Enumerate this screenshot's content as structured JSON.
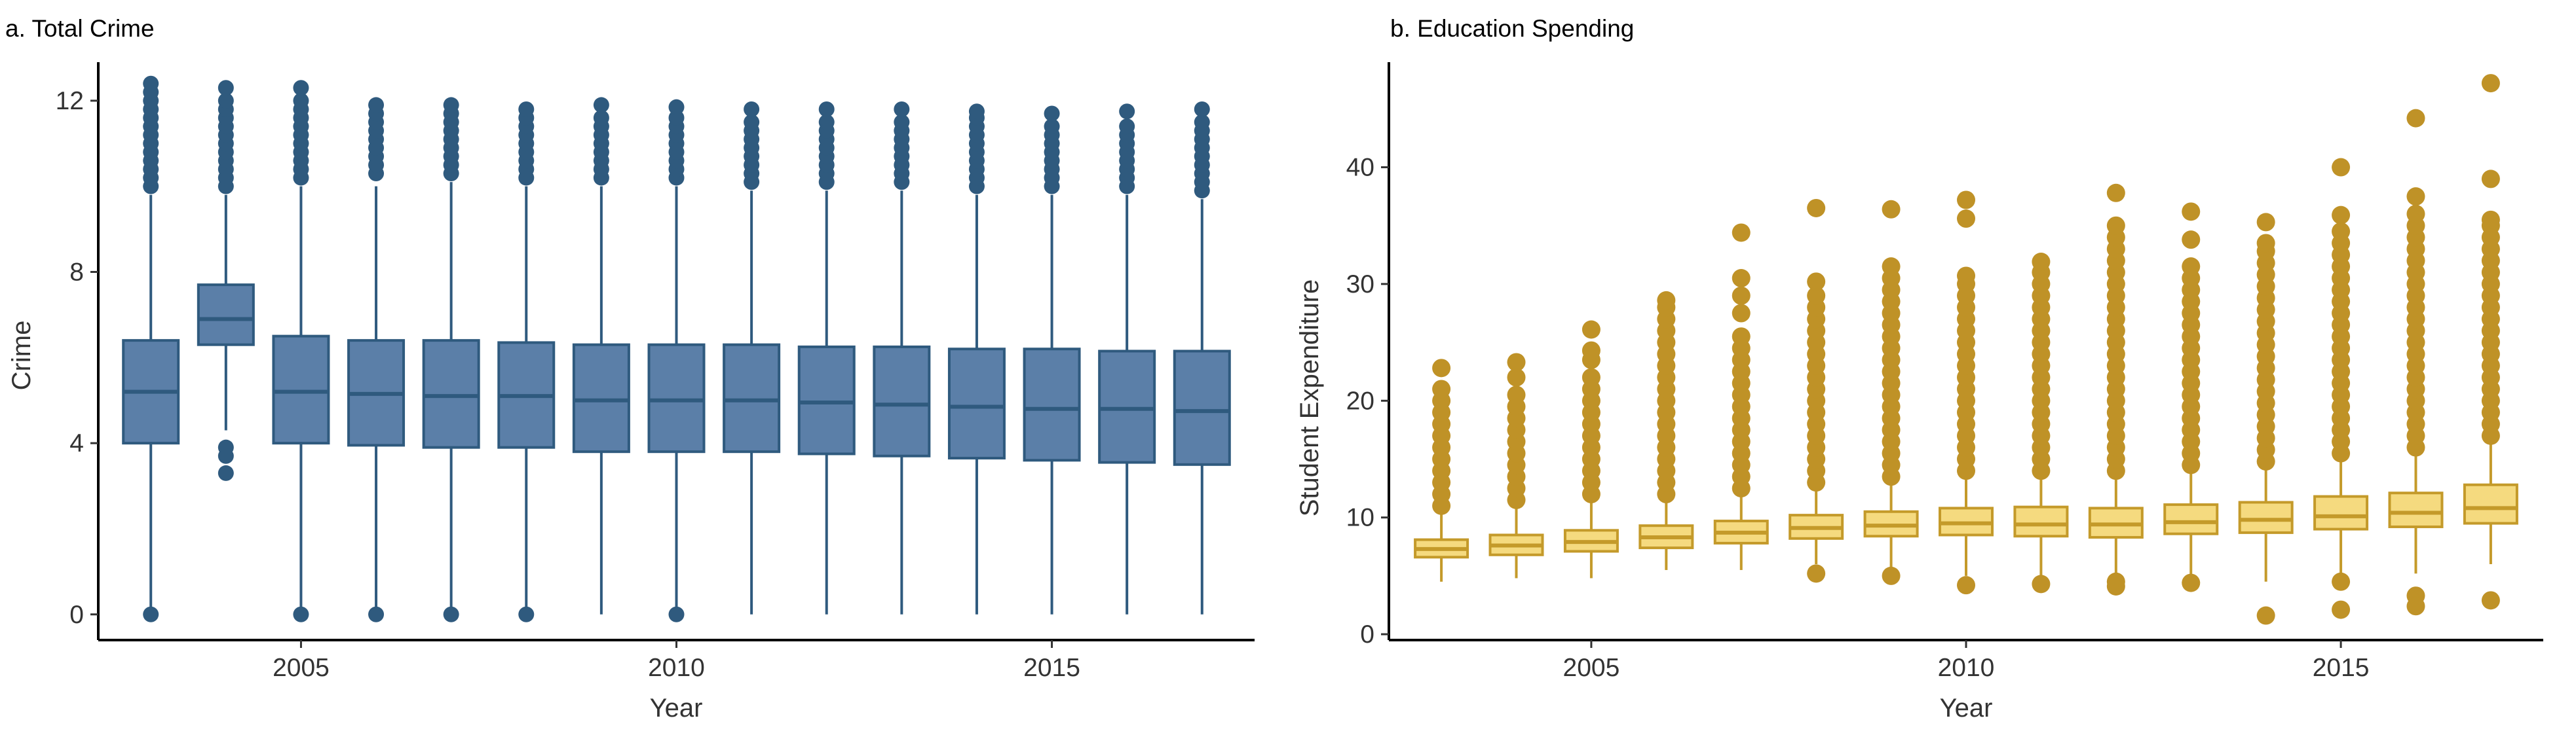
{
  "chart_data": [
    {
      "type": "box",
      "title": "a. Total Crime",
      "xlabel": "Year",
      "ylabel": "Crime",
      "xlim": [
        2002.3,
        2017.7
      ],
      "ylim": [
        -0.6,
        12.9
      ],
      "xticks": [
        2005,
        2010,
        2015
      ],
      "yticks": [
        0,
        4,
        8,
        12
      ],
      "colors": {
        "fill": "#5B7FA8",
        "stroke": "#2F5A7E",
        "outlier": "#2F5A7E"
      },
      "boxes": [
        {
          "year": 2003,
          "q1": 4.0,
          "median": 5.2,
          "q3": 6.4,
          "whisker_low": 0.0,
          "whisker_high": 9.8,
          "outliers": [
            10.0,
            10.2,
            10.4,
            10.6,
            10.8,
            11.0,
            11.2,
            11.4,
            11.6,
            11.8,
            12.0,
            12.2,
            12.4,
            0.0
          ]
        },
        {
          "year": 2004,
          "q1": 6.3,
          "median": 6.9,
          "q3": 7.7,
          "whisker_low": 4.3,
          "whisker_high": 9.8,
          "outliers": [
            10.0,
            10.2,
            10.4,
            10.6,
            10.8,
            11.0,
            11.2,
            11.4,
            11.6,
            11.8,
            12.0,
            12.3,
            3.9,
            3.7,
            3.3
          ]
        },
        {
          "year": 2005,
          "q1": 4.0,
          "median": 5.2,
          "q3": 6.5,
          "whisker_low": 0.0,
          "whisker_high": 10.0,
          "outliers": [
            10.2,
            10.4,
            10.6,
            10.8,
            11.0,
            11.2,
            11.4,
            11.6,
            11.8,
            12.0,
            12.3,
            0.0
          ]
        },
        {
          "year": 2006,
          "q1": 3.95,
          "median": 5.15,
          "q3": 6.4,
          "whisker_low": 0.0,
          "whisker_high": 10.0,
          "outliers": [
            10.3,
            10.5,
            10.7,
            10.9,
            11.1,
            11.3,
            11.5,
            11.7,
            11.9,
            0.0
          ]
        },
        {
          "year": 2007,
          "q1": 3.9,
          "median": 5.1,
          "q3": 6.4,
          "whisker_low": 0.0,
          "whisker_high": 10.1,
          "outliers": [
            10.3,
            10.5,
            10.7,
            10.9,
            11.1,
            11.3,
            11.5,
            11.7,
            11.9,
            0.0
          ]
        },
        {
          "year": 2008,
          "q1": 3.9,
          "median": 5.1,
          "q3": 6.35,
          "whisker_low": 0.0,
          "whisker_high": 10.0,
          "outliers": [
            10.2,
            10.4,
            10.6,
            10.8,
            11.0,
            11.2,
            11.4,
            11.6,
            11.8,
            0.0
          ]
        },
        {
          "year": 2009,
          "q1": 3.8,
          "median": 5.0,
          "q3": 6.3,
          "whisker_low": 0.0,
          "whisker_high": 10.0,
          "outliers": [
            10.2,
            10.4,
            10.6,
            10.8,
            11.0,
            11.2,
            11.4,
            11.6,
            11.9
          ]
        },
        {
          "year": 2010,
          "q1": 3.8,
          "median": 5.0,
          "q3": 6.3,
          "whisker_low": 0.0,
          "whisker_high": 10.0,
          "outliers": [
            10.2,
            10.4,
            10.6,
            10.8,
            11.0,
            11.2,
            11.4,
            11.6,
            11.85,
            0.0
          ]
        },
        {
          "year": 2011,
          "q1": 3.8,
          "median": 5.0,
          "q3": 6.3,
          "whisker_low": 0.0,
          "whisker_high": 9.9,
          "outliers": [
            10.1,
            10.3,
            10.5,
            10.7,
            10.9,
            11.1,
            11.3,
            11.5,
            11.8
          ]
        },
        {
          "year": 2012,
          "q1": 3.75,
          "median": 4.95,
          "q3": 6.25,
          "whisker_low": 0.0,
          "whisker_high": 9.9,
          "outliers": [
            10.1,
            10.3,
            10.5,
            10.7,
            10.9,
            11.1,
            11.3,
            11.5,
            11.8
          ]
        },
        {
          "year": 2013,
          "q1": 3.7,
          "median": 4.9,
          "q3": 6.25,
          "whisker_low": 0.0,
          "whisker_high": 9.9,
          "outliers": [
            10.1,
            10.3,
            10.5,
            10.7,
            10.9,
            11.1,
            11.3,
            11.5,
            11.8
          ]
        },
        {
          "year": 2014,
          "q1": 3.65,
          "median": 4.85,
          "q3": 6.2,
          "whisker_low": 0.0,
          "whisker_high": 9.8,
          "outliers": [
            10.0,
            10.2,
            10.4,
            10.6,
            10.8,
            11.0,
            11.2,
            11.4,
            11.6,
            11.75
          ]
        },
        {
          "year": 2015,
          "q1": 3.6,
          "median": 4.8,
          "q3": 6.2,
          "whisker_low": 0.0,
          "whisker_high": 9.8,
          "outliers": [
            10.0,
            10.2,
            10.4,
            10.6,
            10.8,
            11.0,
            11.2,
            11.4,
            11.7
          ]
        },
        {
          "year": 2016,
          "q1": 3.55,
          "median": 4.8,
          "q3": 6.15,
          "whisker_low": 0.0,
          "whisker_high": 9.8,
          "outliers": [
            10.0,
            10.2,
            10.4,
            10.6,
            10.8,
            11.0,
            11.2,
            11.4,
            11.75
          ]
        },
        {
          "year": 2017,
          "q1": 3.5,
          "median": 4.75,
          "q3": 6.15,
          "whisker_low": 0.0,
          "whisker_high": 9.7,
          "outliers": [
            9.9,
            10.1,
            10.3,
            10.5,
            10.7,
            10.9,
            11.1,
            11.3,
            11.5,
            11.8
          ]
        }
      ]
    },
    {
      "type": "box",
      "title": "b. Education Spending",
      "xlabel": "Year",
      "ylabel": "Student Expenditure",
      "xlim": [
        2002.3,
        2017.7
      ],
      "ylim": [
        -0.5,
        49
      ],
      "xticks": [
        2005,
        2010,
        2015
      ],
      "yticks": [
        0,
        10,
        20,
        30,
        40
      ],
      "colors": {
        "fill": "#F5DA7F",
        "stroke": "#C49A2A",
        "outlier": "#BF9227"
      },
      "boxes": [
        {
          "year": 2003,
          "q1": 6.6,
          "median": 7.3,
          "q3": 8.1,
          "whisker_low": 4.5,
          "whisker_high": 10.4,
          "outliers": [
            11,
            12,
            13,
            14,
            15,
            16,
            17,
            18,
            19,
            20,
            21,
            22.8
          ]
        },
        {
          "year": 2004,
          "q1": 6.8,
          "median": 7.6,
          "q3": 8.5,
          "whisker_low": 4.8,
          "whisker_high": 11.0,
          "outliers": [
            11.5,
            12.5,
            13.5,
            14.5,
            15.5,
            16.5,
            17.5,
            18.5,
            19.5,
            20.5,
            22.0,
            23.3
          ]
        },
        {
          "year": 2005,
          "q1": 7.1,
          "median": 7.9,
          "q3": 8.9,
          "whisker_low": 4.8,
          "whisker_high": 11.4,
          "outliers": [
            12,
            13,
            14,
            15,
            16,
            17,
            18,
            19,
            20,
            21,
            22,
            23.5,
            24.3,
            26.1
          ]
        },
        {
          "year": 2006,
          "q1": 7.4,
          "median": 8.3,
          "q3": 9.3,
          "whisker_low": 5.5,
          "whisker_high": 11.8,
          "outliers": [
            12,
            13,
            14,
            15,
            16,
            17,
            18,
            19,
            20,
            21,
            22,
            23,
            24,
            25,
            26,
            27,
            28,
            28.6
          ]
        },
        {
          "year": 2007,
          "q1": 7.8,
          "median": 8.7,
          "q3": 9.7,
          "whisker_low": 5.5,
          "whisker_high": 12.0,
          "outliers": [
            12.5,
            13.5,
            14.5,
            15.5,
            16.5,
            17.5,
            18.5,
            19.5,
            20.5,
            21.5,
            22.5,
            23.5,
            24.5,
            25.5,
            27.5,
            29.0,
            30.5,
            34.4
          ]
        },
        {
          "year": 2008,
          "q1": 8.2,
          "median": 9.1,
          "q3": 10.2,
          "whisker_low": 6.0,
          "whisker_high": 12.6,
          "outliers": [
            13,
            14,
            15,
            16,
            17,
            18,
            19,
            20,
            21,
            22,
            23,
            24,
            25,
            26,
            27,
            28,
            29,
            30.2,
            36.5,
            5.2
          ]
        },
        {
          "year": 2009,
          "q1": 8.4,
          "median": 9.3,
          "q3": 10.5,
          "whisker_low": 5.5,
          "whisker_high": 13.0,
          "outliers": [
            13.5,
            14.5,
            15.5,
            16.5,
            17.5,
            18.5,
            19.5,
            20.5,
            21.5,
            22.5,
            23.5,
            24.5,
            25.5,
            26.5,
            27.5,
            28.5,
            29.5,
            30.5,
            31.5,
            36.4,
            5.0
          ]
        },
        {
          "year": 2010,
          "q1": 8.5,
          "median": 9.5,
          "q3": 10.8,
          "whisker_low": 5.0,
          "whisker_high": 13.4,
          "outliers": [
            14,
            15,
            16,
            17,
            18,
            19,
            20,
            21,
            22,
            23,
            24,
            25,
            26,
            27,
            28,
            29,
            30,
            30.7,
            35.6,
            37.2,
            4.2
          ]
        },
        {
          "year": 2011,
          "q1": 8.4,
          "median": 9.4,
          "q3": 10.9,
          "whisker_low": 4.5,
          "whisker_high": 13.6,
          "outliers": [
            14,
            15,
            16,
            17,
            18,
            19,
            20,
            21,
            22,
            23,
            24,
            25,
            26,
            27,
            28,
            29,
            30,
            31,
            31.9,
            4.3
          ]
        },
        {
          "year": 2012,
          "q1": 8.3,
          "median": 9.4,
          "q3": 10.8,
          "whisker_low": 4.8,
          "whisker_high": 13.6,
          "outliers": [
            14,
            15,
            16,
            17,
            18,
            19,
            20,
            21,
            22,
            23,
            24,
            25,
            26,
            27,
            28,
            29,
            30,
            31,
            32,
            33,
            34,
            35,
            37.8,
            4.5,
            4.1
          ]
        },
        {
          "year": 2013,
          "q1": 8.6,
          "median": 9.6,
          "q3": 11.1,
          "whisker_low": 4.8,
          "whisker_high": 14.0,
          "outliers": [
            14.5,
            15.5,
            16.5,
            17.5,
            18.5,
            19.5,
            20.5,
            21.5,
            22.5,
            23.5,
            24.5,
            25.5,
            26.5,
            27.5,
            28.5,
            29.5,
            30.5,
            31.5,
            33.8,
            36.2,
            4.4
          ]
        },
        {
          "year": 2014,
          "q1": 8.7,
          "median": 9.8,
          "q3": 11.3,
          "whisker_low": 4.5,
          "whisker_high": 14.3,
          "outliers": [
            14.8,
            15.8,
            16.8,
            17.8,
            18.8,
            19.8,
            20.8,
            21.8,
            22.8,
            23.8,
            24.8,
            25.8,
            26.8,
            27.8,
            28.8,
            29.8,
            30.8,
            31.8,
            32.8,
            33.5,
            35.3,
            1.6
          ]
        },
        {
          "year": 2015,
          "q1": 9.0,
          "median": 10.1,
          "q3": 11.8,
          "whisker_low": 5.0,
          "whisker_high": 15.0,
          "outliers": [
            15.5,
            16.5,
            17.5,
            18.5,
            19.5,
            20.5,
            21.5,
            22.5,
            23.5,
            24.5,
            25.5,
            26.5,
            27.5,
            28.5,
            29.5,
            30.5,
            31.5,
            32.5,
            33.5,
            34.5,
            35.9,
            40.0,
            4.5,
            2.1
          ]
        },
        {
          "year": 2016,
          "q1": 9.2,
          "median": 10.4,
          "q3": 12.1,
          "whisker_low": 5.2,
          "whisker_high": 15.5,
          "outliers": [
            16,
            17,
            18,
            19,
            20,
            21,
            22,
            23,
            24,
            25,
            26,
            27,
            28,
            29,
            30,
            31,
            32,
            33,
            34,
            35,
            36,
            37.5,
            44.2,
            3.3,
            2.4
          ]
        },
        {
          "year": 2017,
          "q1": 9.5,
          "median": 10.8,
          "q3": 12.8,
          "whisker_low": 6.0,
          "whisker_high": 16.5,
          "outliers": [
            17,
            18,
            19,
            20,
            21,
            22,
            23,
            24,
            25,
            26,
            27,
            28,
            29,
            30,
            31,
            32,
            33,
            34,
            35,
            35.5,
            39.0,
            47.2,
            2.9
          ]
        }
      ]
    }
  ]
}
